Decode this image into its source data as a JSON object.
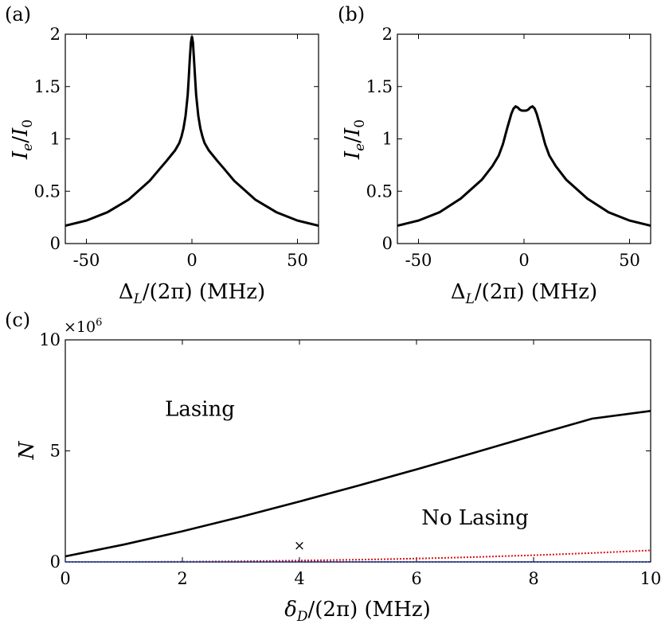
{
  "chart_data": [
    {
      "id": "a",
      "panel_label": "(a)",
      "type": "line",
      "xlabel": "Δ_L/(2π) (MHz)",
      "xlabel_main": "Δ",
      "xlabel_sub": "L",
      "xlabel_rest": "/(2π) (MHz)",
      "ylabel": "I_e/I_0",
      "xlim": [
        -60,
        60
      ],
      "ylim": [
        0,
        2
      ],
      "xticks": [
        -50,
        0,
        50
      ],
      "xtick_labels": [
        "-50",
        "0",
        "50"
      ],
      "yticks": [
        0,
        0.5,
        1,
        1.5,
        2
      ],
      "ytick_labels": [
        "0",
        "0.5",
        "1",
        "1.5",
        "2"
      ],
      "series": [
        {
          "name": "I_e/I_0",
          "color": "#000000",
          "x": [
            -60,
            -50,
            -40,
            -30,
            -20,
            -15,
            -12,
            -10,
            -8,
            -6,
            -5,
            -4,
            -3,
            -2,
            -1.5,
            -1,
            -0.5,
            0,
            0.5,
            1,
            1.5,
            2,
            3,
            4,
            5,
            6,
            8,
            10,
            12,
            15,
            20,
            30,
            40,
            50,
            60
          ],
          "y": [
            0.17,
            0.22,
            0.3,
            0.42,
            0.6,
            0.72,
            0.79,
            0.84,
            0.89,
            0.96,
            1.02,
            1.1,
            1.22,
            1.42,
            1.58,
            1.76,
            1.92,
            1.98,
            1.92,
            1.76,
            1.58,
            1.42,
            1.22,
            1.1,
            1.02,
            0.96,
            0.89,
            0.84,
            0.79,
            0.72,
            0.6,
            0.42,
            0.3,
            0.22,
            0.17
          ]
        }
      ]
    },
    {
      "id": "b",
      "panel_label": "(b)",
      "type": "line",
      "xlabel": "Δ_L/(2π) (MHz)",
      "xlabel_main": "Δ",
      "xlabel_sub": "L",
      "xlabel_rest": "/(2π) (MHz)",
      "ylabel": "I_e/I_0",
      "xlim": [
        -60,
        60
      ],
      "ylim": [
        0,
        2
      ],
      "xticks": [
        -50,
        0,
        50
      ],
      "xtick_labels": [
        "-50",
        "0",
        "50"
      ],
      "yticks": [
        0,
        0.5,
        1,
        1.5,
        2
      ],
      "ytick_labels": [
        "0",
        "0.5",
        "1",
        "1.5",
        "2"
      ],
      "series": [
        {
          "name": "I_e/I_0",
          "color": "#000000",
          "x": [
            -60,
            -50,
            -40,
            -30,
            -20,
            -15,
            -12,
            -10,
            -8,
            -6,
            -5,
            -4,
            -3,
            -2,
            -1,
            0,
            1,
            2,
            3,
            4,
            5,
            6,
            8,
            10,
            12,
            15,
            20,
            30,
            40,
            50,
            60
          ],
          "y": [
            0.17,
            0.22,
            0.3,
            0.43,
            0.61,
            0.74,
            0.84,
            0.95,
            1.1,
            1.24,
            1.29,
            1.31,
            1.3,
            1.28,
            1.27,
            1.27,
            1.27,
            1.28,
            1.3,
            1.31,
            1.29,
            1.24,
            1.1,
            0.95,
            0.84,
            0.74,
            0.61,
            0.43,
            0.3,
            0.22,
            0.17
          ]
        }
      ]
    },
    {
      "id": "c",
      "panel_label": "(c)",
      "type": "line",
      "xlabel": "δ_D/(2π) (MHz)",
      "xlabel_main": "δ",
      "xlabel_sub": "D",
      "xlabel_rest": "/(2π) (MHz)",
      "ylabel": "N",
      "y_multiplier": "×10",
      "y_multiplier_exp": "6",
      "xlim": [
        0,
        10
      ],
      "ylim": [
        0,
        10
      ],
      "xticks": [
        0,
        2,
        4,
        6,
        8,
        10
      ],
      "xtick_labels": [
        "0",
        "2",
        "4",
        "6",
        "8",
        "10"
      ],
      "yticks": [
        0,
        5,
        10
      ],
      "ytick_labels": [
        "0",
        "5",
        "10"
      ],
      "annotations": [
        {
          "text": "Lasing",
          "x": 2.3,
          "y": 6.9
        },
        {
          "text": "No Lasing",
          "x": 7.0,
          "y": 2.0
        }
      ],
      "marker": {
        "symbol": "×",
        "x": 4.0,
        "y": 0.75
      },
      "series": [
        {
          "name": "threshold",
          "color": "#000000",
          "style": "solid",
          "x": [
            0,
            1,
            2,
            3,
            4,
            5,
            6,
            7,
            8,
            9,
            10
          ],
          "y": [
            0.25,
            0.78,
            1.38,
            2.03,
            2.72,
            3.43,
            4.17,
            4.93,
            5.7,
            6.45,
            6.8
          ]
        },
        {
          "name": "red dotted",
          "color": "#e01010",
          "style": "dotted",
          "x": [
            0,
            1,
            2,
            3,
            4,
            5,
            6,
            7,
            8,
            9,
            10
          ],
          "y": [
            0.0,
            0.0,
            0.01,
            0.03,
            0.06,
            0.1,
            0.15,
            0.22,
            0.3,
            0.4,
            0.52
          ]
        },
        {
          "name": "baseline",
          "color": "#1f3fbf",
          "style": "dotted",
          "x": [
            0,
            10
          ],
          "y": [
            0.0,
            0.0
          ]
        }
      ]
    }
  ]
}
